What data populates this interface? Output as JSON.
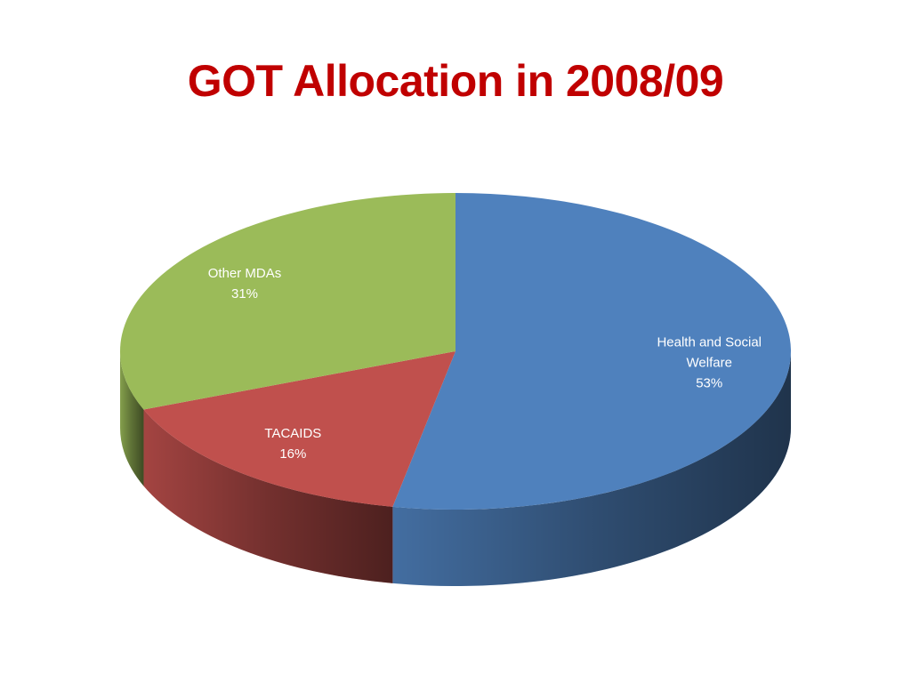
{
  "chart_data": {
    "type": "pie3d",
    "title": "GOT Allocation in 2008/09",
    "categories": [
      "Health and Social Welfare",
      "TACAIDS",
      "Other MDAs"
    ],
    "values": [
      53,
      16,
      31
    ],
    "value_labels": [
      "53%",
      "16%",
      "31%"
    ],
    "colors": [
      "#4f81bd",
      "#c0504d",
      "#9bbb59"
    ]
  }
}
